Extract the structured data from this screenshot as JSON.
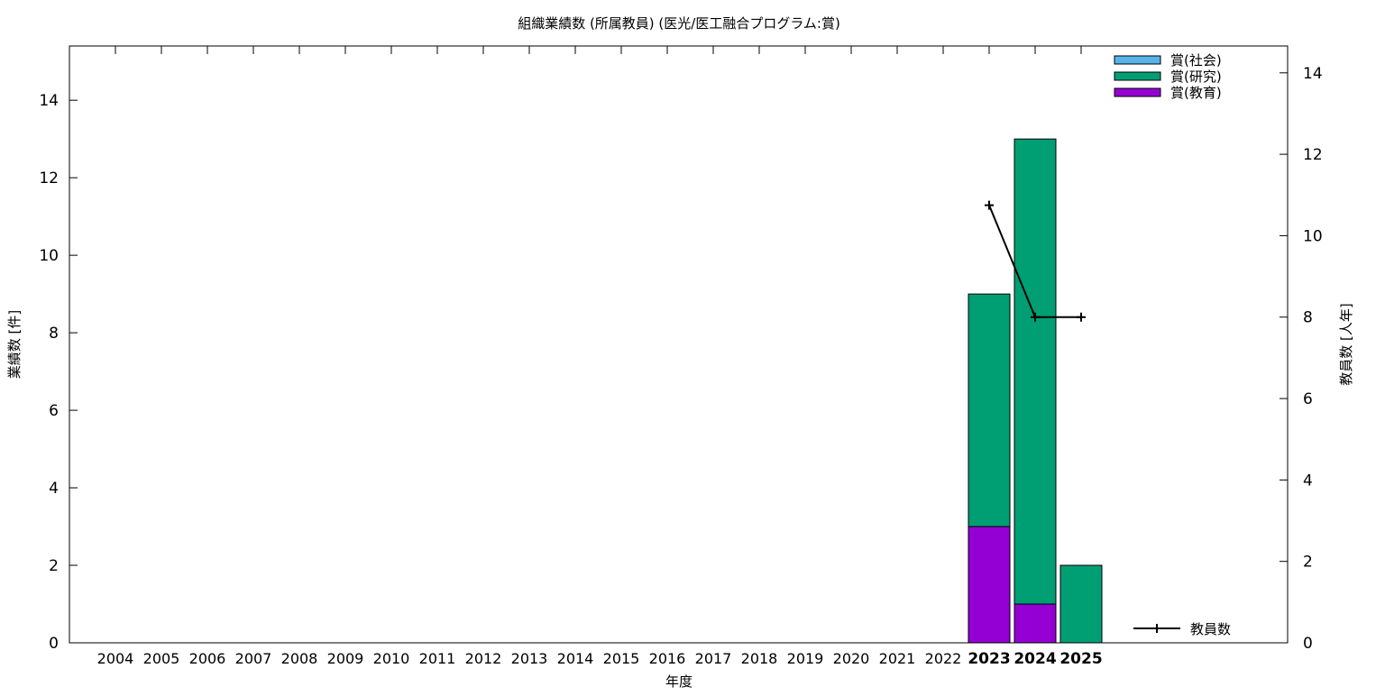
{
  "chart_data": {
    "type": "bar",
    "stacked": true,
    "title": "組織業績数 (所属教員) (医光/医工融合プログラム:賞)",
    "xlabel": "年度",
    "ylabel": "業績数 [件]",
    "y2label": "教員数 [人年]",
    "categories": [
      "2004",
      "2005",
      "2006",
      "2007",
      "2008",
      "2009",
      "2010",
      "2011",
      "2012",
      "2013",
      "2014",
      "2015",
      "2016",
      "2017",
      "2018",
      "2019",
      "2020",
      "2021",
      "2022",
      "2023",
      "2024",
      "2025"
    ],
    "highlighted_categories": [
      "2023",
      "2024",
      "2025"
    ],
    "ylim": [
      0,
      15.4
    ],
    "y2lim": [
      0,
      14.66
    ],
    "yticks": [
      0,
      2,
      4,
      6,
      8,
      10,
      12,
      14
    ],
    "y2ticks": [
      0,
      2,
      4,
      6,
      8,
      10,
      12,
      14
    ],
    "legend_position": "top-right",
    "series": [
      {
        "name": "賞(教育)",
        "color": "#9400d3",
        "values": [
          0,
          0,
          0,
          0,
          0,
          0,
          0,
          0,
          0,
          0,
          0,
          0,
          0,
          0,
          0,
          0,
          0,
          0,
          0,
          3,
          1,
          0
        ]
      },
      {
        "name": "賞(研究)",
        "color": "#009e73",
        "values": [
          0,
          0,
          0,
          0,
          0,
          0,
          0,
          0,
          0,
          0,
          0,
          0,
          0,
          0,
          0,
          0,
          0,
          0,
          0,
          6,
          12,
          2
        ]
      },
      {
        "name": "賞(社会)",
        "color": "#56b4e9",
        "values": [
          0,
          0,
          0,
          0,
          0,
          0,
          0,
          0,
          0,
          0,
          0,
          0,
          0,
          0,
          0,
          0,
          0,
          0,
          0,
          0,
          0,
          0
        ]
      }
    ],
    "line_series": {
      "name": "教員数",
      "axis": "y2",
      "color": "#000000",
      "points": [
        {
          "x": "2023",
          "y": 10.75
        },
        {
          "x": "2024",
          "y": 8
        },
        {
          "x": "2025",
          "y": 8
        }
      ]
    }
  }
}
